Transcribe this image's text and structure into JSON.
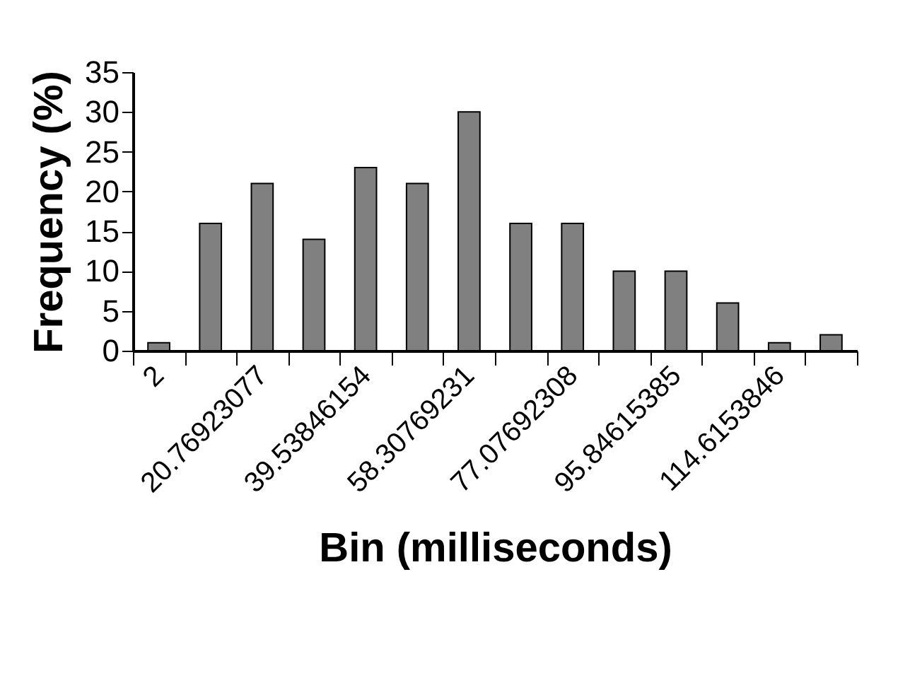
{
  "chart_data": {
    "type": "bar",
    "xlabel": "Bin (milliseconds)",
    "ylabel": "Frequency (%)",
    "categories": [
      "2",
      null,
      "20.76923077",
      null,
      "39.53846154",
      null,
      "58.30769231",
      null,
      "77.07692308",
      null,
      "95.84615385",
      null,
      "114.6153846",
      null
    ],
    "values": [
      1,
      16,
      21,
      14,
      23,
      21,
      30,
      16,
      16,
      10,
      10,
      6,
      1,
      2
    ],
    "color": "#808080",
    "ylim": [
      0,
      35
    ],
    "yticks": [
      0,
      5,
      10,
      15,
      20,
      25,
      30,
      35
    ],
    "grid": false,
    "legend": false
  }
}
